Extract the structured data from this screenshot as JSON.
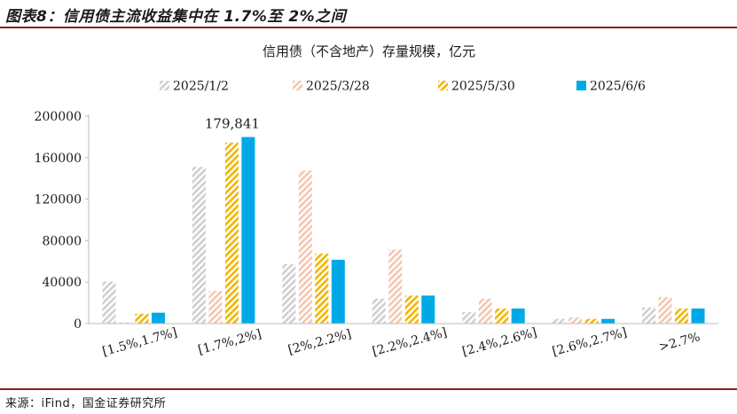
{
  "header": {
    "figure_title": "图表8：信用债主流收益集中在 1.7%至 2%之间"
  },
  "footer": {
    "source": "来源：iFind，国金证券研究所"
  },
  "colors": {
    "rule": "#8c1e1e",
    "axis": "#bdbdbd"
  },
  "chart_data": {
    "type": "bar",
    "title": "信用债（不含地产）存量规模，亿元",
    "categories": [
      "[1.5%,1.7%]",
      "[1.7%,2%]",
      "[2%,2.2%]",
      "[2.2%,2.4%]",
      "[2.4%,2.6%]",
      "[2.6%,2.7%]",
      ">2.7%"
    ],
    "ylim": [
      0,
      200000
    ],
    "yticks": [
      0,
      40000,
      80000,
      120000,
      160000,
      200000
    ],
    "ytick_labels": [
      "0",
      "40000",
      "80000",
      "120000",
      "160000",
      "200000"
    ],
    "legend_position": "top",
    "series": [
      {
        "name": "2025/1/2",
        "color": "#cfcfcf",
        "pattern": "hatch",
        "values": [
          40500,
          151000,
          57500,
          24000,
          11000,
          4500,
          15500
        ]
      },
      {
        "name": "2025/3/28",
        "color": "#f4c6b1",
        "pattern": "hatch",
        "values": [
          1000,
          31500,
          147500,
          71500,
          24000,
          6000,
          25500
        ]
      },
      {
        "name": "2025/5/30",
        "color": "#f2b600",
        "pattern": "hatch",
        "values": [
          9500,
          174500,
          67500,
          27000,
          14500,
          4500,
          14500
        ]
      },
      {
        "name": "2025/6/6",
        "color": "#00a9e6",
        "pattern": "solid",
        "values": [
          10500,
          179841,
          61500,
          27000,
          14500,
          4500,
          14500
        ]
      }
    ],
    "annotations": [
      {
        "series": 3,
        "category": 1,
        "text": "179,841"
      }
    ]
  }
}
